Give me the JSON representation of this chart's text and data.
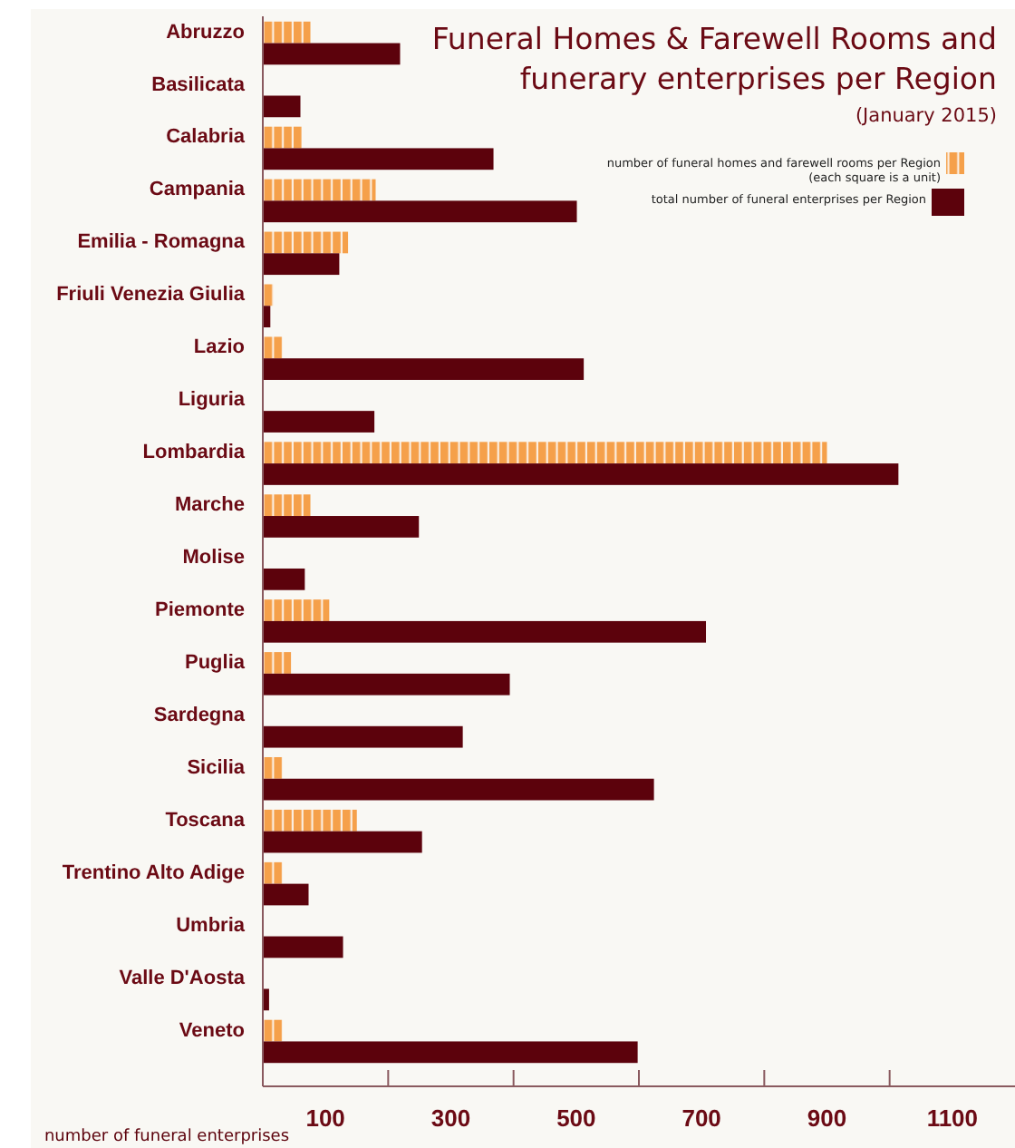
{
  "chart_data": {
    "type": "bar",
    "orientation": "horizontal",
    "title": "Funeral Homes & Farewell Rooms and funerary enterprises per Region",
    "subtitle": "(January 2015)",
    "xlabel": "number of funeral enterprises",
    "categories": [
      "Abruzzo",
      "Basilicata",
      "Calabria",
      "Campania",
      "Emilia - Romagna",
      "Friuli Venezia Giulia",
      "Lazio",
      "Liguria",
      "Lombardia",
      "Marche",
      "Molise",
      "Piemonte",
      "Puglia",
      "Sardegna",
      "Sicilia",
      "Toscana",
      "Trentino Alto Adige",
      "Umbria",
      "Valle D'Aosta",
      "Veneto"
    ],
    "series": [
      {
        "name": "number of funeral homes and farewell rooms per Region\n(each square is a unit)",
        "color": "#f5a04a",
        "values": [
          76,
          null,
          62,
          180,
          136,
          17,
          31,
          null,
          900,
          76,
          null,
          106,
          45,
          null,
          31,
          150,
          31,
          null,
          null,
          31
        ]
      },
      {
        "name": "total number of funeral enterprises per Region",
        "color": "#5c020c",
        "values": [
          219,
          60,
          368,
          501,
          122,
          12,
          512,
          178,
          1014,
          249,
          67,
          707,
          394,
          319,
          624,
          254,
          73,
          128,
          10,
          598
        ]
      }
    ],
    "xlim": [
      0,
      1200
    ],
    "xticks": [
      {
        "value": 100,
        "label": "100"
      },
      {
        "value": 200,
        "label": null
      },
      {
        "value": 300,
        "label": "300"
      },
      {
        "value": 400,
        "label": null
      },
      {
        "value": 500,
        "label": "500"
      },
      {
        "value": 600,
        "label": null
      },
      {
        "value": 700,
        "label": "700"
      },
      {
        "value": 800,
        "label": null
      },
      {
        "value": 900,
        "label": "900"
      },
      {
        "value": 1000,
        "label": null
      },
      {
        "value": 1100,
        "label": "1100"
      }
    ],
    "legend": "top right"
  }
}
